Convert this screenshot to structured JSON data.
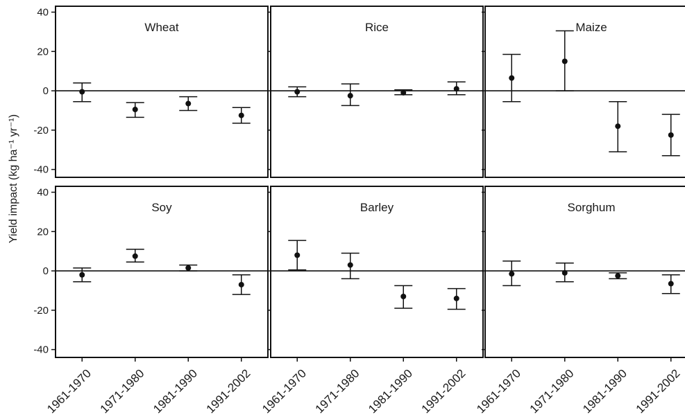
{
  "figure": {
    "ylabel": "Yield impact (kg ha⁻¹ yr⁻¹)",
    "x_tick_labels": [
      "1961-1970",
      "1971-1980",
      "1981-1990",
      "1991-2002"
    ],
    "y_tick_labels": [
      "-40",
      "-20",
      "0",
      "20",
      "40"
    ]
  },
  "chart_data": [
    {
      "type": "scatter",
      "title": "Wheat",
      "categories": [
        "1961-1970",
        "1971-1980",
        "1981-1990",
        "1991-2002"
      ],
      "values": [
        -0.5,
        -9.5,
        -6.5,
        -12.5
      ],
      "lower": [
        -5.5,
        -13.5,
        -10,
        -16.5
      ],
      "upper": [
        4,
        -6,
        -3,
        -8.5
      ],
      "ylim": [
        -44,
        43
      ],
      "yticks": [
        -40,
        -20,
        0,
        20,
        40
      ],
      "reference_line": 0
    },
    {
      "type": "scatter",
      "title": "Rice",
      "categories": [
        "1961-1970",
        "1971-1980",
        "1981-1990",
        "1991-2002"
      ],
      "values": [
        -0.5,
        -2.5,
        -1,
        1
      ],
      "lower": [
        -3,
        -7.5,
        -2,
        -2
      ],
      "upper": [
        2,
        3.5,
        0.5,
        4.5
      ],
      "ylim": [
        -44,
        43
      ],
      "yticks": [
        -40,
        -20,
        0,
        20,
        40
      ],
      "reference_line": 0
    },
    {
      "type": "scatter",
      "title": "Maize",
      "categories": [
        "1961-1970",
        "1971-1980",
        "1981-1990",
        "1991-2002"
      ],
      "values": [
        6.5,
        15,
        -18,
        -22.5
      ],
      "lower": [
        -5.5,
        0,
        -31,
        -33
      ],
      "upper": [
        18.5,
        30.5,
        -5.5,
        -12
      ],
      "ylim": [
        -44,
        43
      ],
      "yticks": [
        -40,
        -20,
        0,
        20,
        40
      ],
      "reference_line": 0
    },
    {
      "type": "scatter",
      "title": "Soy",
      "categories": [
        "1961-1970",
        "1971-1980",
        "1981-1990",
        "1991-2002"
      ],
      "values": [
        -2,
        7.5,
        1.5,
        -7
      ],
      "lower": [
        -5.5,
        4.5,
        0,
        -12
      ],
      "upper": [
        1.5,
        11,
        3,
        -2
      ],
      "ylim": [
        -44,
        43
      ],
      "yticks": [
        -40,
        -20,
        0,
        20,
        40
      ],
      "reference_line": 0
    },
    {
      "type": "scatter",
      "title": "Barley",
      "categories": [
        "1961-1970",
        "1971-1980",
        "1981-1990",
        "1991-2002"
      ],
      "values": [
        8,
        3,
        -13,
        -14
      ],
      "lower": [
        0.5,
        -4,
        -19,
        -19.5
      ],
      "upper": [
        15.5,
        9,
        -7.5,
        -9
      ],
      "ylim": [
        -44,
        43
      ],
      "yticks": [
        -40,
        -20,
        0,
        20,
        40
      ],
      "reference_line": 0
    },
    {
      "type": "scatter",
      "title": "Sorghum",
      "categories": [
        "1961-1970",
        "1971-1980",
        "1981-1990",
        "1991-2002"
      ],
      "values": [
        -1.5,
        -1,
        -2.5,
        -6.5
      ],
      "lower": [
        -7.5,
        -5.5,
        -4,
        -11.5
      ],
      "upper": [
        5,
        4,
        -1,
        -2
      ],
      "ylim": [
        -44,
        43
      ],
      "yticks": [
        -40,
        -20,
        0,
        20,
        40
      ],
      "reference_line": 0
    }
  ]
}
